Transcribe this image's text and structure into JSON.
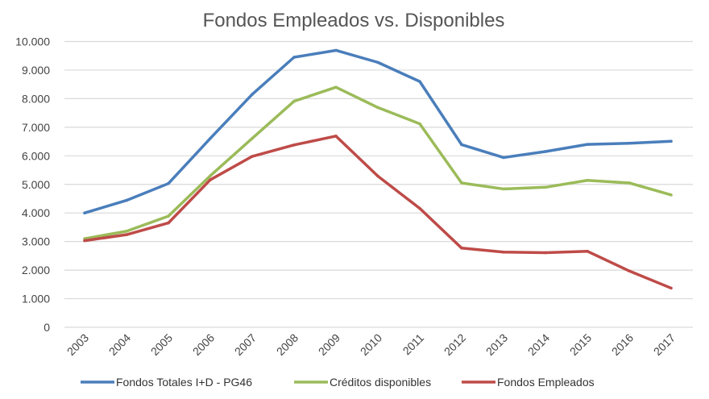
{
  "chart_data": {
    "type": "line",
    "title": "Fondos Empleados vs. Disponibles",
    "xlabel": "",
    "ylabel": "",
    "ylim": [
      0,
      10000
    ],
    "yticks": [
      "0",
      "1.000",
      "2.000",
      "3.000",
      "4.000",
      "5.000",
      "6.000",
      "7.000",
      "8.000",
      "9.000",
      "10.000"
    ],
    "ytick_values": [
      0,
      1000,
      2000,
      3000,
      4000,
      5000,
      6000,
      7000,
      8000,
      9000,
      10000
    ],
    "categories": [
      "2003",
      "2004",
      "2005",
      "2006",
      "2007",
      "2008",
      "2009",
      "2010",
      "2011",
      "2012",
      "2013",
      "2014",
      "2015",
      "2016",
      "2017"
    ],
    "grid": "horizontal",
    "legend_position": "bottom",
    "series": [
      {
        "name": "Fondos Totales I+D - PG46",
        "color": "#4a7ebb",
        "values": [
          4000,
          4440,
          5030,
          6610,
          8150,
          9450,
          9690,
          9270,
          8600,
          6390,
          5940,
          6150,
          6400,
          6440,
          6510
        ]
      },
      {
        "name": "Créditos disponibles",
        "color": "#9bbb59",
        "values": [
          3100,
          3360,
          3890,
          5300,
          6610,
          7910,
          8400,
          7690,
          7120,
          5050,
          4840,
          4900,
          5140,
          5050,
          4630
        ]
      },
      {
        "name": "Fondos Empleados",
        "color": "#be4b48",
        "values": [
          3030,
          3240,
          3650,
          5160,
          5980,
          6380,
          6690,
          5290,
          4160,
          2770,
          2630,
          2610,
          2660,
          1970,
          1370
        ]
      }
    ]
  }
}
